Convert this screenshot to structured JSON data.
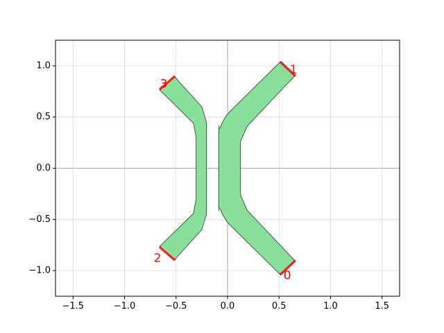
{
  "chart_data": {
    "type": "layout",
    "title": "",
    "xlabel": "",
    "ylabel": "",
    "xlim": [
      -1.67,
      1.67
    ],
    "ylim": [
      -1.25,
      1.25
    ],
    "xticks": [
      -1.5,
      -1.0,
      -0.5,
      0.0,
      0.5,
      1.0,
      1.5
    ],
    "xtick_labels": [
      "−1.5",
      "−1.0",
      "−0.5",
      "0.0",
      "0.5",
      "1.0",
      "1.5"
    ],
    "yticks": [
      -1.0,
      -0.5,
      0.0,
      0.5,
      1.0
    ],
    "ytick_labels": [
      "−1.0",
      "−0.5",
      "0.0",
      "0.5",
      "1.0"
    ],
    "grid": true,
    "axis_lines_at_zero": true,
    "colors": {
      "fill": "#88e09b",
      "outline": "#3f5a46",
      "port": "#ff0000",
      "grid": "#d8d8d8",
      "zero_line": "#a6a6a6"
    },
    "shapes": [
      {
        "name": "left-arm",
        "points": [
          [
            -0.515,
            0.894
          ],
          [
            -0.25,
            0.6
          ],
          [
            -0.205,
            0.45
          ],
          [
            -0.205,
            -0.45
          ],
          [
            -0.25,
            -0.6
          ],
          [
            -0.515,
            -0.894
          ],
          [
            -0.66,
            -0.765
          ],
          [
            -0.33,
            -0.44
          ],
          [
            -0.305,
            -0.3
          ],
          [
            -0.305,
            0.3
          ],
          [
            -0.33,
            0.44
          ],
          [
            -0.66,
            0.765
          ]
        ]
      },
      {
        "name": "left-gap-edge",
        "points": [
          [
            -0.085,
            0.42
          ],
          [
            -0.085,
            -0.42
          ]
        ]
      },
      {
        "name": "right-arm",
        "points": [
          [
            -0.085,
            0.38
          ],
          [
            -0.07,
            0.4
          ],
          [
            -0.05,
            0.45
          ],
          [
            0.0,
            0.53
          ],
          [
            0.06,
            0.59
          ],
          [
            0.515,
            1.043
          ],
          [
            0.655,
            0.905
          ],
          [
            0.19,
            0.41
          ],
          [
            0.125,
            0.26
          ],
          [
            0.125,
            -0.26
          ],
          [
            0.19,
            -0.41
          ],
          [
            0.655,
            -0.905
          ],
          [
            0.515,
            -1.043
          ],
          [
            0.06,
            -0.59
          ],
          [
            0.0,
            -0.53
          ],
          [
            -0.05,
            -0.45
          ],
          [
            -0.07,
            -0.4
          ],
          [
            -0.085,
            -0.38
          ]
        ]
      }
    ],
    "ports": [
      {
        "label": "0",
        "p1": [
          0.51,
          -1.04
        ],
        "p2": [
          0.66,
          -0.9
        ],
        "text_at": [
          0.58,
          -1.05
        ]
      },
      {
        "label": "1",
        "p1": [
          0.51,
          1.04
        ],
        "p2": [
          0.66,
          0.9
        ],
        "text_at": [
          0.64,
          0.96
        ]
      },
      {
        "label": "2",
        "p1": [
          -0.66,
          -0.77
        ],
        "p2": [
          -0.51,
          -0.9
        ],
        "text_at": [
          -0.68,
          -0.88
        ]
      },
      {
        "label": "3",
        "p1": [
          -0.66,
          0.77
        ],
        "p2": [
          -0.51,
          0.9
        ],
        "text_at": [
          -0.62,
          0.82
        ]
      }
    ]
  }
}
